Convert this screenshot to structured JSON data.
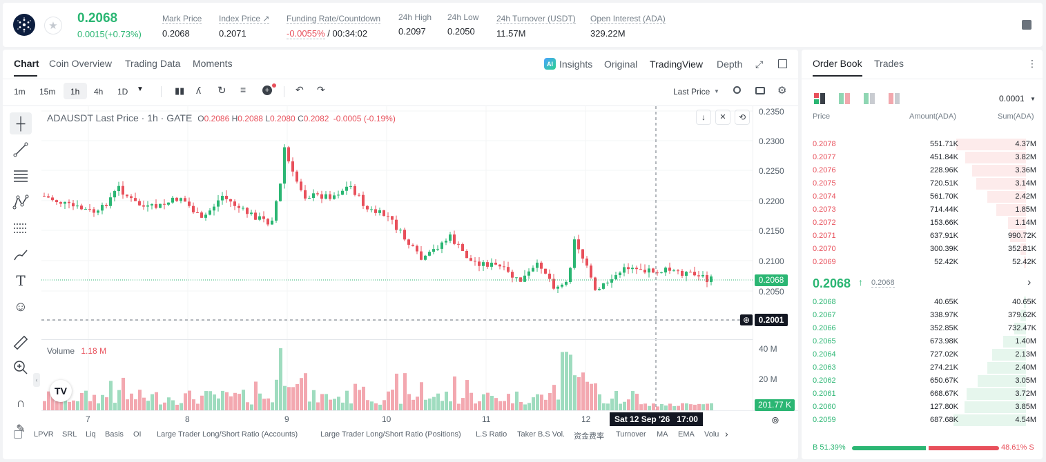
{
  "ticker": {
    "price": "0.2068",
    "change": "0.0015(+0.73%)",
    "stats": [
      {
        "label": "Mark Price",
        "value": "0.2068"
      },
      {
        "label": "Index Price ↗",
        "value": "0.2071"
      },
      {
        "label": "Funding Rate/Countdown",
        "value_a": "-0.0055%",
        "value_b": " / 00:34:02"
      },
      {
        "label": "24h High",
        "value": "0.2097"
      },
      {
        "label": "24h Low",
        "value": "0.2050"
      },
      {
        "label": "24h Turnover (USDT)",
        "value": "11.57M"
      },
      {
        "label": "Open Interest (ADA)",
        "value": "329.22M"
      }
    ]
  },
  "chart_tabs": [
    "Chart",
    "Coin Overview",
    "Trading Data",
    "Moments"
  ],
  "view_tabs": {
    "insights": "Insights",
    "original": "Original",
    "tradingview": "TradingView",
    "depth": "Depth"
  },
  "intervals": [
    "1m",
    "15m",
    "1h",
    "4h",
    "1D"
  ],
  "price_source": "Last Price",
  "legend": {
    "symbol": "ADAUSDT Last Price · 1h · GATE",
    "o_label": "O",
    "o": "0.2086",
    "h_label": "H",
    "h": "0.2088",
    "l_label": "L",
    "l": "0.2080",
    "c_label": "C",
    "c": "0.2082",
    "chg": "-0.0005 (-0.19%)"
  },
  "volume_legend": {
    "label": "Volume",
    "value": "1.18 M"
  },
  "price_axis": [
    "0.2350",
    "0.2300",
    "0.2250",
    "0.2200",
    "0.2150",
    "0.2100",
    "0.2050"
  ],
  "current_price_tag": "0.2068",
  "crosshair_price_tag": "0.2001",
  "volume_axis": [
    "40 M",
    "20 M"
  ],
  "volume_tag": "201.77 K",
  "time_axis": [
    "7",
    "8",
    "9",
    "10",
    "11",
    "12"
  ],
  "crosshair_time": "Sat 12 Sep '26   17:00",
  "indicators": [
    "LPVR",
    "SRL",
    "Liq",
    "Basis",
    "OI",
    "Large Trader Long/Short Ratio (Accounts)",
    "Large Trader Long/Short Ratio (Positions)",
    "L.S Ratio",
    "Taker B.S Vol.",
    "资金费率",
    "Turnover",
    "MA",
    "EMA",
    "Volu"
  ],
  "orderbook": {
    "tabs": [
      "Order Book",
      "Trades"
    ],
    "precision": "0.0001",
    "headers": [
      "Price",
      "Amount(ADA)",
      "Sum(ADA)"
    ],
    "asks": [
      {
        "price": "0.2078",
        "amount": "551.71K",
        "sum": "4.37M",
        "depth": 0.96
      },
      {
        "price": "0.2077",
        "amount": "451.84K",
        "sum": "3.82M",
        "depth": 0.84
      },
      {
        "price": "0.2076",
        "amount": "228.96K",
        "sum": "3.36M",
        "depth": 0.74
      },
      {
        "price": "0.2075",
        "amount": "720.51K",
        "sum": "3.14M",
        "depth": 0.69
      },
      {
        "price": "0.2074",
        "amount": "561.70K",
        "sum": "2.42M",
        "depth": 0.53
      },
      {
        "price": "0.2073",
        "amount": "714.44K",
        "sum": "1.85M",
        "depth": 0.41
      },
      {
        "price": "0.2072",
        "amount": "153.66K",
        "sum": "1.14M",
        "depth": 0.25
      },
      {
        "price": "0.2071",
        "amount": "637.91K",
        "sum": "990.72K",
        "depth": 0.22
      },
      {
        "price": "0.2070",
        "amount": "300.39K",
        "sum": "352.81K",
        "depth": 0.08
      },
      {
        "price": "0.2069",
        "amount": "52.42K",
        "sum": "52.42K",
        "depth": 0.01
      }
    ],
    "mid_price": "0.2068",
    "mid_mark": "0.2068",
    "bids": [
      {
        "price": "0.2068",
        "amount": "40.65K",
        "sum": "40.65K",
        "depth": 0.01
      },
      {
        "price": "0.2067",
        "amount": "338.97K",
        "sum": "379.62K",
        "depth": 0.08
      },
      {
        "price": "0.2066",
        "amount": "352.85K",
        "sum": "732.47K",
        "depth": 0.16
      },
      {
        "price": "0.2065",
        "amount": "673.98K",
        "sum": "1.40M",
        "depth": 0.31
      },
      {
        "price": "0.2064",
        "amount": "727.02K",
        "sum": "2.13M",
        "depth": 0.47
      },
      {
        "price": "0.2063",
        "amount": "274.21K",
        "sum": "2.40M",
        "depth": 0.53
      },
      {
        "price": "0.2062",
        "amount": "650.67K",
        "sum": "3.05M",
        "depth": 0.67
      },
      {
        "price": "0.2061",
        "amount": "668.67K",
        "sum": "3.72M",
        "depth": 0.82
      },
      {
        "price": "0.2060",
        "amount": "127.80K",
        "sum": "3.85M",
        "depth": 0.85
      },
      {
        "price": "0.2059",
        "amount": "687.68K",
        "sum": "4.54M",
        "depth": 1.0
      }
    ],
    "buy_ratio": "B 51.39%",
    "sell_ratio": "48.61% S",
    "buy_fraction": 0.5139
  },
  "colors": {
    "up": "#2bb673",
    "down": "#e8505b",
    "accent": "#1f2329"
  }
}
